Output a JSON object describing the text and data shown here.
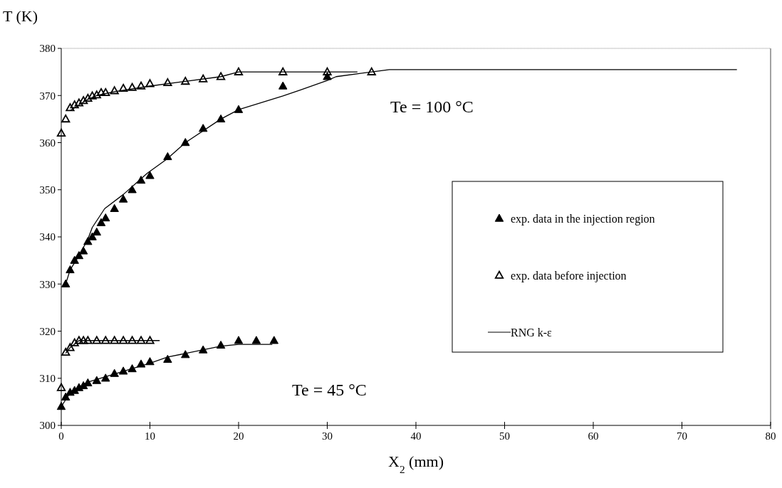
{
  "chart_data": {
    "type": "scatter",
    "xlabel": "X$_{2}$ (mm)",
    "ylabel": "T (K)",
    "xlim": [
      0,
      80
    ],
    "ylim": [
      300,
      380
    ],
    "xticks": [
      0,
      10,
      20,
      30,
      40,
      50,
      60,
      70,
      80
    ],
    "yticks": [
      300,
      310,
      320,
      330,
      340,
      350,
      360,
      370,
      380
    ],
    "grid": false,
    "legend": "right",
    "annotations": [
      "Te = 100 °C",
      "Te = 45 °C"
    ],
    "series": [
      {
        "name": "exp. data in the injection region",
        "type": "scatter",
        "marker": "triangle",
        "color": "#000000",
        "x": [
          0.5,
          1,
          1.5,
          2,
          2.5,
          3,
          3.5,
          4,
          4.5,
          5,
          6,
          7,
          8,
          9,
          10,
          12,
          14,
          16,
          18,
          20,
          25,
          30
        ],
        "values": [
          330,
          333,
          335,
          336,
          337,
          339,
          340,
          341,
          343,
          344,
          346,
          348,
          350,
          352,
          353,
          357,
          360,
          363,
          365,
          367,
          372,
          374
        ]
      },
      {
        "name": "exp. data before injection",
        "type": "scatter",
        "marker": "triangle-open",
        "color": "#000000",
        "x": [
          0,
          0.5,
          1,
          1.5,
          2,
          2.5,
          3,
          3.5,
          4,
          4.5,
          5,
          6,
          7,
          8,
          9,
          10,
          12,
          14,
          16,
          18,
          20,
          25,
          30,
          35
        ],
        "values": [
          362,
          365,
          367.4,
          368,
          368.4,
          368.9,
          369.4,
          369.9,
          370.1,
          370.6,
          370.6,
          371,
          371.5,
          371.7,
          372,
          372.5,
          372.7,
          373,
          373.5,
          374,
          375,
          375,
          375,
          375
        ]
      },
      {
        "name": "RNG k-ε",
        "type": "line",
        "color": "#000000",
        "x": [
          0.5,
          1,
          2,
          3,
          3.5,
          4.9,
          7,
          9.7,
          11.9,
          14,
          18,
          20,
          25,
          27,
          30,
          31,
          35,
          37,
          76.2
        ],
        "values": [
          330,
          333,
          336,
          339.5,
          342,
          346,
          349,
          353.5,
          356.5,
          360,
          365,
          367,
          369.9,
          371.2,
          373.2,
          374,
          375,
          375.5,
          375.5
        ]
      },
      {
        "type": "line",
        "color": "#000000",
        "x": [
          1,
          2,
          3,
          4,
          6,
          10,
          14,
          18,
          20,
          33.4
        ],
        "values": [
          366.8,
          368,
          369.2,
          370,
          370.8,
          372,
          373,
          374,
          375,
          375
        ]
      },
      {
        "type": "scatter",
        "marker": "triangle",
        "color": "#000000",
        "x": [
          0,
          0.5,
          1,
          1.5,
          2,
          2.5,
          3,
          4,
          5,
          6,
          7,
          8,
          9,
          10,
          12,
          14,
          16,
          18,
          20,
          22,
          24
        ],
        "values": [
          304,
          306,
          307,
          307.4,
          308,
          308.4,
          309,
          309.5,
          310,
          311,
          311.5,
          312,
          313,
          313.5,
          314,
          315,
          316,
          317,
          318,
          318,
          318
        ]
      },
      {
        "type": "scatter",
        "marker": "triangle-open",
        "color": "#000000",
        "x": [
          0,
          0.5,
          1,
          1.5,
          2,
          2.5,
          3,
          4,
          5,
          6,
          7,
          8,
          9,
          10
        ],
        "values": [
          308,
          315.5,
          316.5,
          317.5,
          318,
          318,
          318,
          318,
          318,
          318,
          318,
          318,
          318,
          318
        ]
      },
      {
        "type": "line",
        "color": "#000000",
        "x": [
          0.5,
          1,
          2,
          11.1
        ],
        "values": [
          315.3,
          316.5,
          318,
          318
        ]
      },
      {
        "type": "line",
        "color": "#000000",
        "x": [
          0,
          1.1,
          3,
          10,
          12,
          18,
          20,
          23.8
        ],
        "values": [
          304,
          307.2,
          309.2,
          313.2,
          314.5,
          316.8,
          317.2,
          317.2
        ]
      }
    ]
  }
}
